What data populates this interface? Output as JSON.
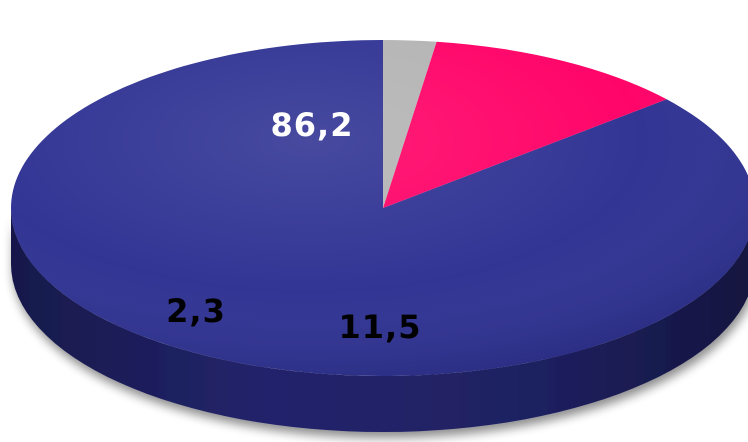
{
  "chart_data": {
    "type": "pie",
    "variant": "3d",
    "title": "",
    "legend": "none",
    "slices": [
      {
        "label": "86,2",
        "value": 86.2,
        "color": "#2e3192",
        "label_color": "#ffffff"
      },
      {
        "label": "11,5",
        "value": 11.5,
        "color": "#ff0066",
        "label_color": "#000000"
      },
      {
        "label": "2,3",
        "value": 2.3,
        "color": "#b3b3b3",
        "label_color": "#000000"
      }
    ]
  }
}
